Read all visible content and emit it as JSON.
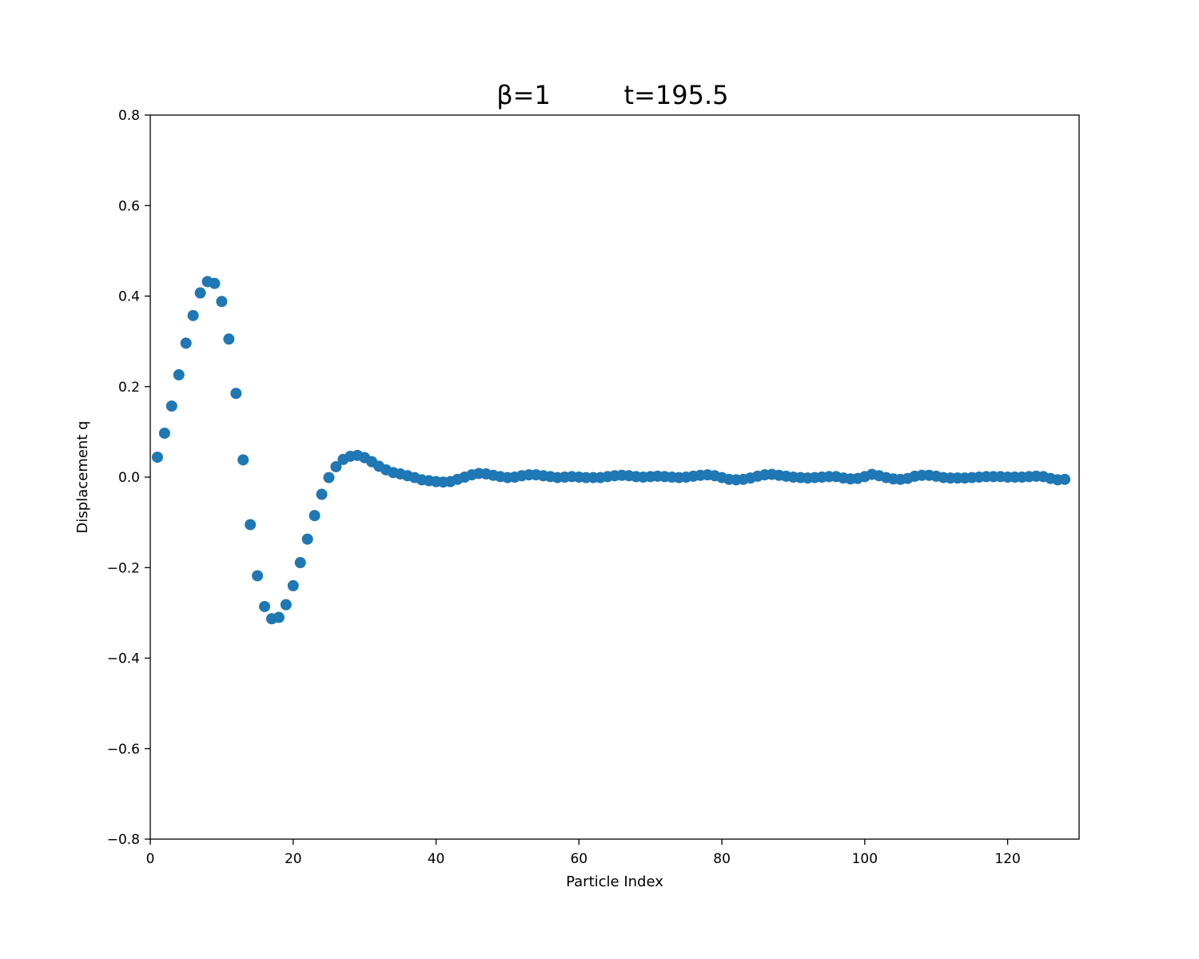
{
  "chart_data": {
    "type": "scatter",
    "title_left": "β=1",
    "title_right": "t=195.5",
    "xlabel": "Particle Index",
    "ylabel": "Displacement q",
    "xlim": [
      0,
      130
    ],
    "ylim": [
      -0.8,
      0.8
    ],
    "xticks": [
      0,
      20,
      40,
      60,
      80,
      100,
      120
    ],
    "xtick_labels": [
      "0",
      "20",
      "40",
      "60",
      "80",
      "100",
      "120"
    ],
    "yticks": [
      -0.8,
      -0.6,
      -0.4,
      -0.2,
      0.0,
      0.2,
      0.4,
      0.6,
      0.8
    ],
    "ytick_labels": [
      "−0.8",
      "−0.6",
      "−0.4",
      "−0.2",
      "0.0",
      "0.2",
      "0.4",
      "0.6",
      "0.8"
    ],
    "grid": false,
    "marker_color": "#1f77b4",
    "x_start": 1,
    "y": [
      0.044,
      0.097,
      0.157,
      0.226,
      0.296,
      0.357,
      0.407,
      0.432,
      0.428,
      0.388,
      0.305,
      0.185,
      0.038,
      -0.105,
      -0.218,
      -0.286,
      -0.313,
      -0.31,
      -0.282,
      -0.24,
      -0.189,
      -0.137,
      -0.085,
      -0.038,
      -0.001,
      0.023,
      0.039,
      0.046,
      0.048,
      0.043,
      0.034,
      0.024,
      0.016,
      0.01,
      0.007,
      0.003,
      -0.001,
      -0.006,
      -0.008,
      -0.01,
      -0.011,
      -0.01,
      -0.005,
      0.0,
      0.005,
      0.008,
      0.007,
      0.004,
      0.001,
      -0.001,
      0.0,
      0.003,
      0.005,
      0.005,
      0.003,
      0.001,
      -0.001,
      0.0,
      0.001,
      0.0,
      -0.001,
      -0.001,
      -0.001,
      0.001,
      0.003,
      0.004,
      0.003,
      0.001,
      0.0,
      0.001,
      0.002,
      0.001,
      0.0,
      -0.001,
      0.0,
      0.002,
      0.004,
      0.005,
      0.003,
      -0.001,
      -0.005,
      -0.006,
      -0.005,
      -0.002,
      0.002,
      0.005,
      0.006,
      0.004,
      0.002,
      0.0,
      -0.001,
      -0.002,
      -0.001,
      0.0,
      0.001,
      0.001,
      -0.002,
      -0.004,
      -0.003,
      0.001,
      0.006,
      0.003,
      -0.001,
      -0.004,
      -0.005,
      -0.003,
      0.002,
      0.004,
      0.004,
      0.002,
      -0.001,
      -0.002,
      -0.002,
      -0.002,
      -0.001,
      0.0,
      0.001,
      0.001,
      0.001,
      0.0,
      0.0,
      0.0,
      0.001,
      0.002,
      0.001,
      -0.003,
      -0.006,
      -0.005
    ]
  }
}
